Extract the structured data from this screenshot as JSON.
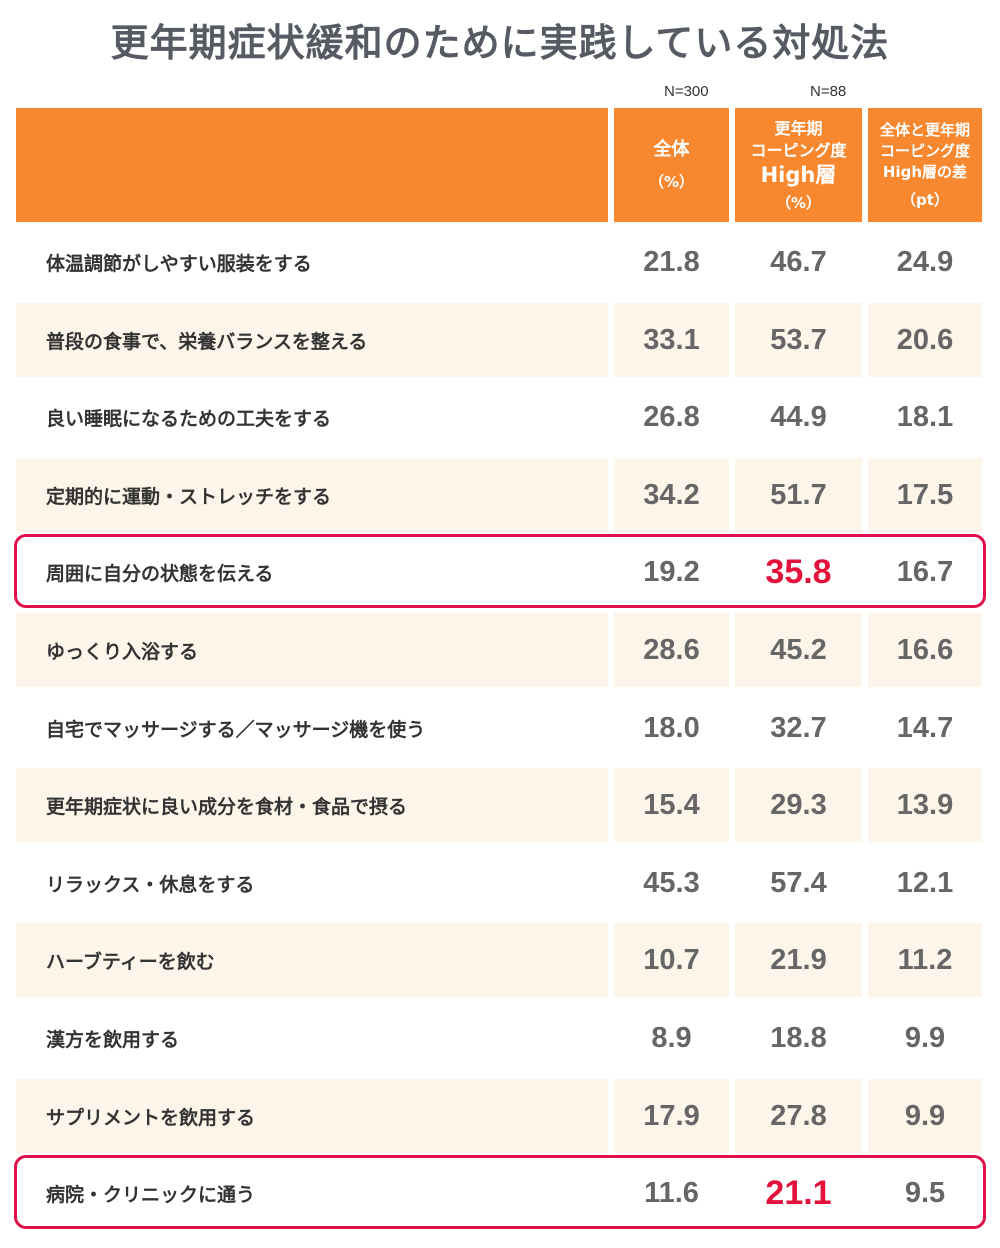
{
  "title": "更年期症状緩和のために実践している対処法",
  "n_labels": {
    "all": "N=300",
    "high": "N=88"
  },
  "header": {
    "col1": {
      "line1": "全体",
      "unit": "（%）"
    },
    "col2": {
      "line1": "更年期\nコーピング度",
      "line2": "High層",
      "unit": "（%）"
    },
    "col3": {
      "line1": "全体と更年期\nコーピング度\nHigh層の差",
      "unit": "（pt）"
    }
  },
  "colors": {
    "header": "#f7882f",
    "stripe": "#fdf5e9",
    "highlight": "#e2104a",
    "number": "#666666"
  },
  "chart_data": {
    "type": "table",
    "title": "更年期症状緩和のために実践している対処法",
    "columns": [
      "全体（%）",
      "更年期コーピング度High層（%）",
      "全体と更年期コーピング度High層の差（pt）"
    ],
    "highlighted_rows": [
      4,
      12
    ],
    "rows": [
      {
        "label": "体温調節がしやすい服装をする",
        "values": [
          "21.8",
          "46.7",
          "24.9"
        ]
      },
      {
        "label": "普段の食事で、栄養バランスを整える",
        "values": [
          "33.1",
          "53.7",
          "20.6"
        ]
      },
      {
        "label": "良い睡眠になるための工夫をする",
        "values": [
          "26.8",
          "44.9",
          "18.1"
        ]
      },
      {
        "label": "定期的に運動・ストレッチをする",
        "values": [
          "34.2",
          "51.7",
          "17.5"
        ]
      },
      {
        "label": "周囲に自分の状態を伝える",
        "values": [
          "19.2",
          "35.8",
          "16.7"
        ]
      },
      {
        "label": "ゆっくり入浴する",
        "values": [
          "28.6",
          "45.2",
          "16.6"
        ]
      },
      {
        "label": "自宅でマッサージする／マッサージ機を使う",
        "values": [
          "18.0",
          "32.7",
          "14.7"
        ]
      },
      {
        "label": "更年期症状に良い成分を食材・食品で摂る",
        "values": [
          "15.4",
          "29.3",
          "13.9"
        ]
      },
      {
        "label": "リラックス・休息をする",
        "values": [
          "45.3",
          "57.4",
          "12.1"
        ]
      },
      {
        "label": "ハーブティーを飲む",
        "values": [
          "10.7",
          "21.9",
          "11.2"
        ]
      },
      {
        "label": "漢方を飲用する",
        "values": [
          "8.9",
          "18.8",
          "9.9"
        ]
      },
      {
        "label": "サプリメントを飲用する",
        "values": [
          "17.9",
          "27.8",
          "9.9"
        ]
      },
      {
        "label": "病院・クリニックに通う",
        "values": [
          "11.6",
          "21.1",
          "9.5"
        ]
      }
    ]
  }
}
